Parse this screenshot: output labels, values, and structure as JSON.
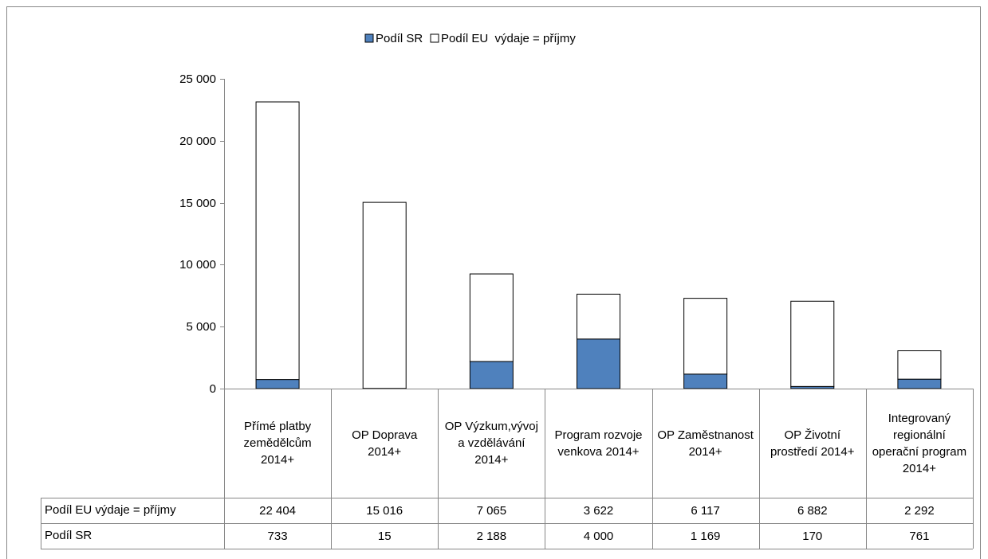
{
  "chart_data": {
    "type": "stacked_bar",
    "categories": [
      "Přímé platby zemědělcům 2014+",
      "OP Doprava 2014+",
      "OP Výzkum,vývoj a vzdělávání 2014+",
      "Program rozvoje venkova 2014+",
      "OP Zaměstnanost 2014+",
      "OP Životní prostředí 2014+",
      "Integrovaný regionální operační program 2014+"
    ],
    "series": [
      {
        "name": "Podíl SR",
        "color": "#4f81bd",
        "values": [
          733,
          15,
          2188,
          4000,
          1169,
          170,
          761
        ],
        "value_labels": [
          "733",
          "15",
          "2 188",
          "4 000",
          "1 169",
          "170",
          "761"
        ]
      },
      {
        "name": "Podíl EU  výdaje = příjmy",
        "color": "#ffffff",
        "values": [
          22404,
          15016,
          7065,
          3622,
          6117,
          6882,
          2292
        ],
        "value_labels": [
          "22 404",
          "15 016",
          "7 065",
          "3 622",
          "6 117",
          "6 882",
          "2 292"
        ]
      }
    ],
    "ylim": [
      0,
      25000
    ],
    "yticks": [
      0,
      {
        "value": 5000,
        "label": "5 000"
      },
      {
        "value": 10000,
        "label": "10 000"
      },
      {
        "value": 15000,
        "label": "15 000"
      },
      {
        "value": 20000,
        "label": "20 000"
      },
      {
        "value": 25000,
        "label": "25 000"
      }
    ],
    "legend": "top",
    "data_table": true
  }
}
